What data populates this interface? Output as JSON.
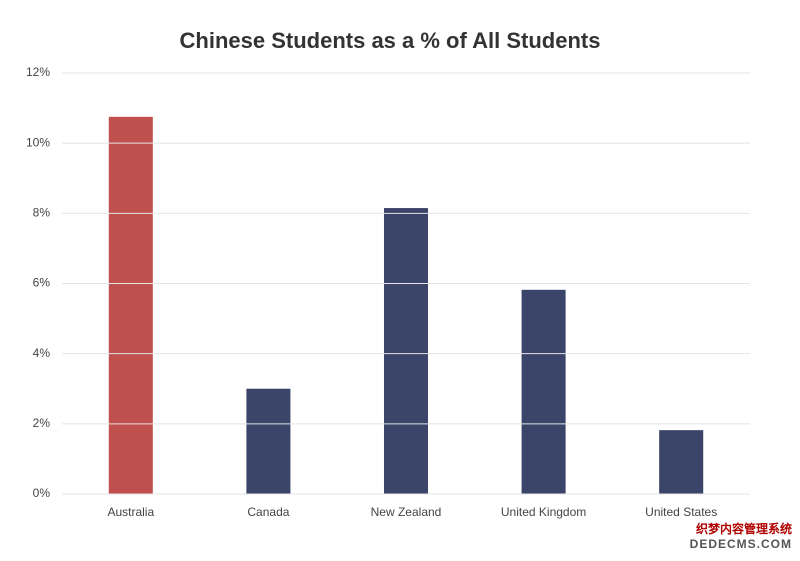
{
  "chart_data": {
    "type": "bar",
    "title": "Chinese Students as a % of All Students",
    "categories": [
      "Australia",
      "Canada",
      "New Zealand",
      "United Kingdom",
      "United States"
    ],
    "values": [
      10.75,
      3.0,
      8.15,
      5.82,
      1.82
    ],
    "colors": [
      "#c0504d",
      "#3b4469",
      "#3b4469",
      "#3b4469",
      "#3b4469"
    ],
    "ylim": [
      0,
      12
    ],
    "yticks": [
      {
        "value": 0,
        "label": "0%"
      },
      {
        "value": 2,
        "label": "2%"
      },
      {
        "value": 4,
        "label": "4%"
      },
      {
        "value": 6,
        "label": "6%"
      },
      {
        "value": 8,
        "label": "8%"
      },
      {
        "value": 10,
        "label": "10%"
      },
      {
        "value": 12,
        "label": "12%"
      }
    ],
    "grid": true
  },
  "watermark": [
    "织梦内容管理系统",
    "DEDECMS.COM"
  ]
}
